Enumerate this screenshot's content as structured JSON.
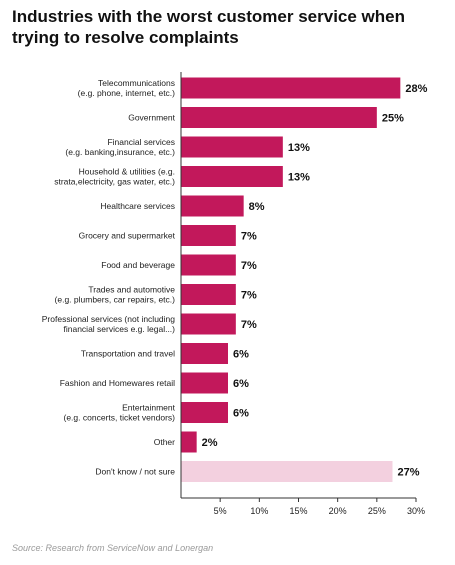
{
  "title": {
    "line1": "Industries with the worst customer service when",
    "line2": "trying to resolve complaints"
  },
  "source": "Source: Research from ServiceNow and Lonergan",
  "chart_data": {
    "type": "bar",
    "orientation": "horizontal",
    "title": "Industries with the worst customer service when trying to resolve complaints",
    "categories": [
      [
        "Telecommunications",
        "(e.g. phone, internet, etc.)"
      ],
      [
        "Government"
      ],
      [
        "Financial services",
        "(e.g. banking,insurance, etc.)"
      ],
      [
        "Household & utilities (e.g.",
        "strata,electricity, gas water, etc.)"
      ],
      [
        "Healthcare services"
      ],
      [
        "Grocery and supermarket"
      ],
      [
        "Food and beverage"
      ],
      [
        "Trades and automotive",
        "(e.g. plumbers, car repairs, etc.)"
      ],
      [
        "Professional services (not including",
        "financial services e.g. legal...)"
      ],
      [
        "Transportation and travel"
      ],
      [
        "Fashion and Homewares retail"
      ],
      [
        "Entertainment",
        "(e.g. concerts, ticket vendors)"
      ],
      [
        "Other"
      ],
      [
        "Don't know / not sure"
      ]
    ],
    "values": [
      28,
      25,
      13,
      13,
      8,
      7,
      7,
      7,
      7,
      6,
      6,
      6,
      2,
      27
    ],
    "value_labels": [
      "28%",
      "25%",
      "13%",
      "13%",
      "8%",
      "7%",
      "7%",
      "7%",
      "7%",
      "6%",
      "6%",
      "6%",
      "2%",
      "27%"
    ],
    "bar_colors": [
      "#c2185b",
      "#c2185b",
      "#c2185b",
      "#c2185b",
      "#c2185b",
      "#c2185b",
      "#c2185b",
      "#c2185b",
      "#c2185b",
      "#c2185b",
      "#c2185b",
      "#c2185b",
      "#c2185b",
      "#f3d0df"
    ],
    "xticks": [
      5,
      10,
      15,
      20,
      25,
      30
    ],
    "xtick_labels": [
      "5%",
      "10%",
      "15%",
      "20%",
      "25%",
      "30%"
    ],
    "xlim": [
      0,
      30
    ],
    "grid": false,
    "legend": "none"
  }
}
